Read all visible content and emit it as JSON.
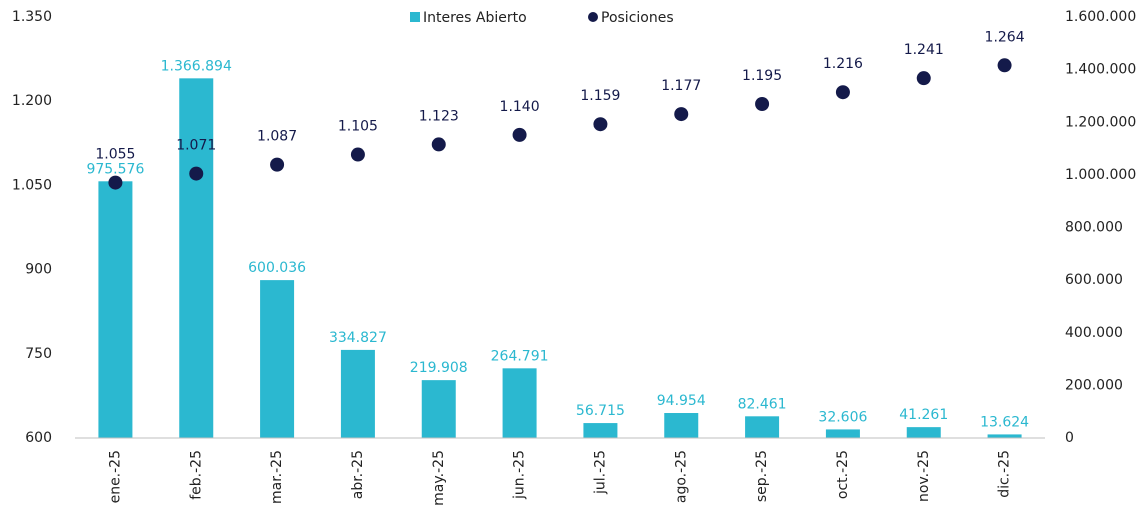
{
  "chart_data": {
    "type": "bar_scatter",
    "categories": [
      "ene.-25",
      "feb.-25",
      "mar.-25",
      "abr.-25",
      "may.-25",
      "jun.-25",
      "jul.-25",
      "ago.-25",
      "sep.-25",
      "oct.-25",
      "nov.-25",
      "dic.-25"
    ],
    "series": [
      {
        "name": "Interes Abierto",
        "type": "bar",
        "axis": "y2",
        "color": "#2bb8d0",
        "values": [
          975576,
          1366894,
          600036,
          334827,
          219908,
          264791,
          56715,
          94954,
          82461,
          32606,
          41261,
          13624
        ],
        "value_labels": [
          "975.576",
          "1.366.894",
          "600.036",
          "334.827",
          "219.908",
          "264.791",
          "56.715",
          "94.954",
          "82.461",
          "32.606",
          "41.261",
          "13.624"
        ]
      },
      {
        "name": "Posiciones",
        "type": "scatter",
        "axis": "y",
        "color": "#141a4a",
        "values": [
          1055,
          1071,
          1087,
          1105,
          1123,
          1140,
          1159,
          1177,
          1195,
          1216,
          1241,
          1264
        ],
        "value_labels": [
          "1.055",
          "1.071",
          "1.087",
          "1.105",
          "1.123",
          "1.140",
          "1.159",
          "1.177",
          "1.195",
          "1.216",
          "1.241",
          "1.264"
        ]
      }
    ],
    "ylim": [
      600,
      1350
    ],
    "yticks": [
      600,
      750,
      900,
      {
        "value": 1050,
        "label": "1.050"
      },
      {
        "value": 1200,
        "label": "1.200"
      },
      {
        "value": 1350,
        "label": "1.350"
      }
    ],
    "y2lim": [
      0,
      1600000
    ],
    "y2ticks": [
      0,
      {
        "value": 200000,
        "label": "200.000"
      },
      {
        "value": 400000,
        "label": "400.000"
      },
      {
        "value": 600000,
        "label": "600.000"
      },
      {
        "value": 800000,
        "label": "800.000"
      },
      {
        "value": 1000000,
        "label": "1.000.000"
      },
      {
        "value": 1200000,
        "label": "1.200.000"
      },
      {
        "value": 1400000,
        "label": "1.400.000"
      },
      {
        "value": 1600000,
        "label": "1.600.000"
      }
    ],
    "legend": "top",
    "grid": false
  }
}
